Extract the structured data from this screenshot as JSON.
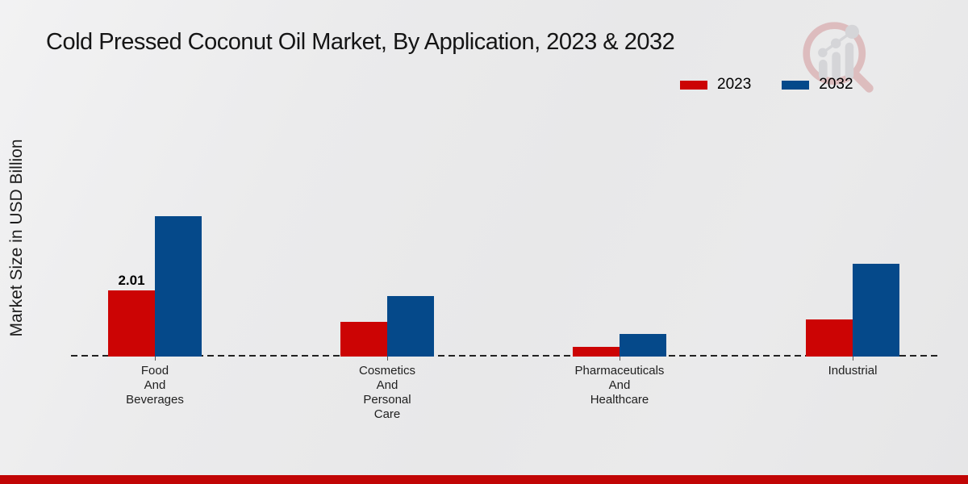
{
  "header": {
    "title": "Cold Pressed Coconut Oil Market, By Application, 2023 & 2032"
  },
  "branding": {
    "logo_icon": "magnifier-bar-chart-logo"
  },
  "colors": {
    "series_2023": "#cc0404",
    "series_2032": "#05498a",
    "footer_bar": "#c10505",
    "background": "#eaeaeb",
    "logo_ring": "#d4999b",
    "logo_bars": "#c4c5c9"
  },
  "chart_data": {
    "type": "bar",
    "title": "Cold Pressed Coconut Oil Market, By Application, 2023 & 2032",
    "xlabel": "",
    "ylabel": "Market Size in USD Billion",
    "categories": [
      "Food\nAnd\nBeverages",
      "Cosmetics\nAnd\nPersonal\nCare",
      "Pharmaceuticals\nAnd\nHealthcare",
      "Industrial"
    ],
    "series": [
      {
        "name": "2023",
        "color": "#cc0404",
        "values": [
          2.01,
          1.05,
          0.29,
          1.12
        ],
        "data_labels": [
          "2.01",
          "",
          "",
          ""
        ]
      },
      {
        "name": "2032",
        "color": "#05498a",
        "values": [
          4.25,
          1.83,
          0.68,
          2.8
        ],
        "data_labels": [
          "",
          "",
          "",
          ""
        ]
      }
    ],
    "ylim": [
      0,
      4.6
    ],
    "grid": false,
    "axis_style": "dashed-baseline-only",
    "legend_position": "top-right"
  }
}
